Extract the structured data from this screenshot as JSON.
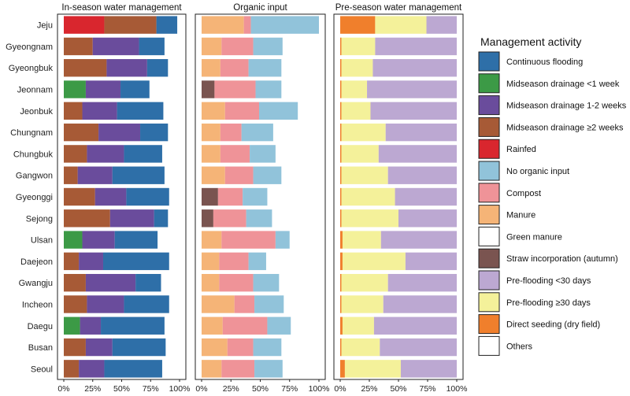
{
  "chart_data": {
    "type": "bar",
    "orientation": "horizontal",
    "stacked": true,
    "xlim": [
      0,
      100
    ],
    "xticks": [
      "0%",
      "25%",
      "50%",
      "75%",
      "100%"
    ],
    "regions": [
      "Jeju",
      "Gyeongnam",
      "Gyeongbuk",
      "Jeonnam",
      "Jeonbuk",
      "Chungnam",
      "Chungbuk",
      "Gangwon",
      "Gyeonggi",
      "Sejong",
      "Ulsan",
      "Daejeon",
      "Gwangju",
      "Incheon",
      "Daegu",
      "Busan",
      "Seoul"
    ],
    "legend": {
      "title": "Management activity",
      "items": [
        {
          "label": "Continuous flooding",
          "color": "#2E6FA8"
        },
        {
          "label": "Midseason drainage <1 week",
          "color": "#3C9A46"
        },
        {
          "label": "Midseason drainage 1-2 weeks",
          "color": "#6A4C9C"
        },
        {
          "label": "Midseason drainage ≥2 weeks",
          "color": "#A75A36"
        },
        {
          "label": "Rainfed",
          "color": "#D9262E"
        },
        {
          "label": "No organic input",
          "color": "#91C3DA"
        },
        {
          "label": "Compost",
          "color": "#EF9398"
        },
        {
          "label": "Manure",
          "color": "#F5B477"
        },
        {
          "label": "Green manure",
          "color": "#FFFFFF"
        },
        {
          "label": "Straw incorporation (autumn)",
          "color": "#7A5450"
        },
        {
          "label": "Pre-flooding <30 days",
          "color": "#BCA8D2"
        },
        {
          "label": "Pre-flooding ≥30 days",
          "color": "#F4F19A"
        },
        {
          "label": "Direct seeding (dry field)",
          "color": "#F07F2C"
        },
        {
          "label": "Others",
          "color": "#FFFFFF"
        }
      ]
    },
    "panels": [
      {
        "title": "In-season water management",
        "segments": [
          "Rainfed",
          "Midseason drainage ≥2 weeks",
          "Midseason drainage <1 week",
          "Midseason drainage 1-2 weeks",
          "Continuous flooding"
        ],
        "values": [
          [
            35,
            45,
            0,
            0,
            18
          ],
          [
            0,
            25,
            0,
            40,
            22
          ],
          [
            0,
            37,
            0,
            35,
            18
          ],
          [
            0,
            0,
            0,
            30,
            25
          ],
          [
            0,
            16,
            0,
            30,
            40
          ],
          [
            0,
            30,
            0,
            36,
            24
          ],
          [
            0,
            20,
            0,
            32,
            33
          ],
          [
            0,
            12,
            0,
            30,
            45
          ],
          [
            0,
            27,
            0,
            27,
            37
          ],
          [
            0,
            40,
            0,
            38,
            12
          ],
          [
            0,
            0,
            0,
            28,
            37
          ],
          [
            0,
            13,
            0,
            21,
            57
          ],
          [
            0,
            19,
            0,
            43,
            22
          ],
          [
            0,
            20,
            0,
            32,
            39
          ],
          [
            0,
            0,
            0,
            18,
            55
          ],
          [
            0,
            19,
            0,
            23,
            46
          ],
          [
            0,
            13,
            0,
            22,
            50
          ]
        ],
        "extra": {
          "Jeonnam": {
            "segment": "Midseason drainage <1 week",
            "value": 19
          },
          "Ulsan": {
            "segment": "Midseason drainage <1 week",
            "value": 16
          },
          "Daegu": {
            "segment": "Midseason drainage <1 week",
            "value": 14
          }
        }
      },
      {
        "title": "Organic input",
        "segments": [
          "Straw incorporation (autumn)",
          "Manure",
          "Compost",
          "No organic input"
        ],
        "values": [
          [
            0,
            36,
            6,
            58
          ],
          [
            0,
            17,
            27,
            25
          ],
          [
            0,
            16,
            24,
            28
          ],
          [
            11,
            0,
            35,
            22
          ],
          [
            0,
            20,
            29,
            33
          ],
          [
            0,
            16,
            18,
            27
          ],
          [
            0,
            16,
            25,
            22
          ],
          [
            0,
            20,
            24,
            24
          ],
          [
            14,
            0,
            21,
            21
          ],
          [
            10,
            0,
            28,
            22
          ],
          [
            0,
            17,
            46,
            12
          ],
          [
            0,
            15,
            25,
            15
          ],
          [
            0,
            15,
            29,
            22
          ],
          [
            0,
            28,
            17,
            25
          ],
          [
            0,
            18,
            38,
            20
          ],
          [
            0,
            22,
            22,
            24
          ],
          [
            0,
            17,
            28,
            24
          ]
        ]
      },
      {
        "title": "Pre-season water management",
        "segments": [
          "Direct seeding (dry field)",
          "Pre-flooding ≥30 days",
          "Pre-flooding <30 days"
        ],
        "values": [
          [
            30,
            44,
            26
          ],
          [
            1,
            29,
            70
          ],
          [
            1,
            27,
            72
          ],
          [
            1,
            22,
            77
          ],
          [
            1,
            25,
            74
          ],
          [
            1,
            38,
            61
          ],
          [
            1,
            32,
            67
          ],
          [
            1,
            40,
            59
          ],
          [
            1,
            46,
            53
          ],
          [
            1,
            49,
            50
          ],
          [
            2,
            33,
            65
          ],
          [
            2,
            54,
            44
          ],
          [
            1,
            40,
            59
          ],
          [
            1,
            36,
            63
          ],
          [
            2,
            27,
            71
          ],
          [
            1,
            33,
            66
          ],
          [
            4,
            48,
            48
          ]
        ]
      }
    ]
  }
}
